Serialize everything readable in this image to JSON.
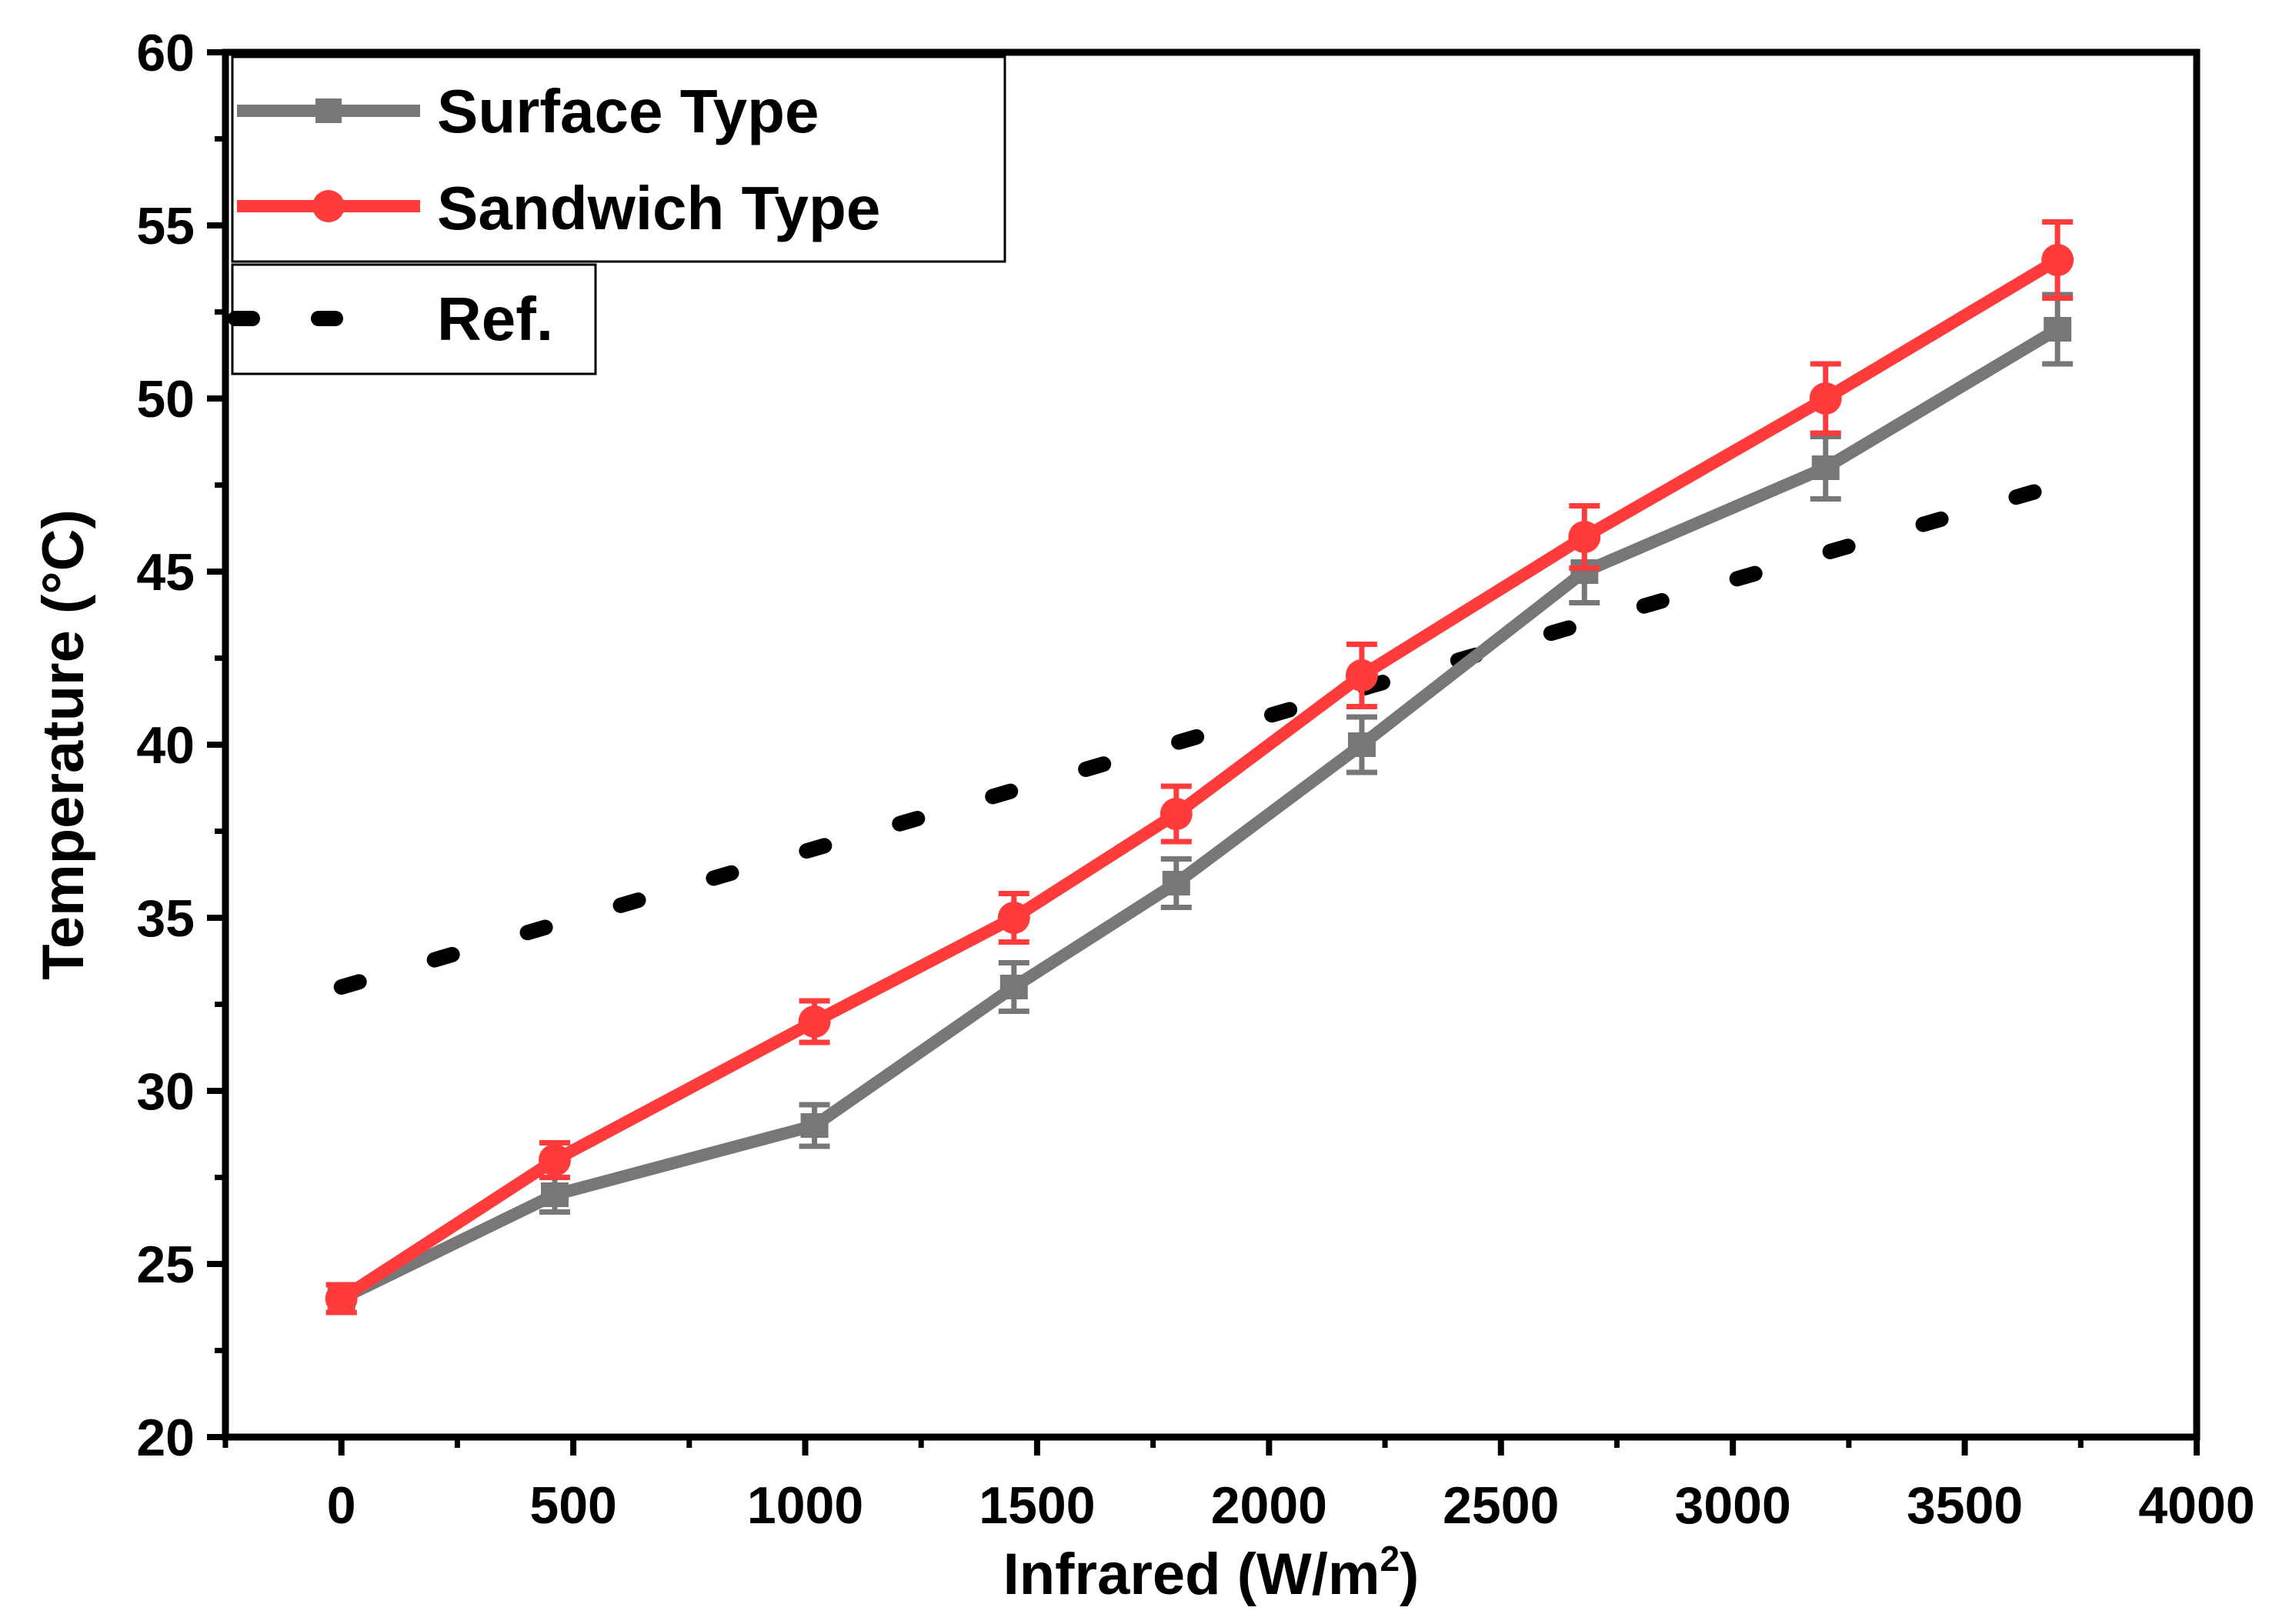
{
  "chart_data": {
    "type": "line",
    "title": "",
    "xlabel": "Infrared (W/m",
    "xlabel_sup": "2",
    "xlabel_suffix": ")",
    "ylabel": "Temperature (°C)",
    "xlim": [
      -250,
      4000
    ],
    "ylim": [
      20,
      60
    ],
    "xticks": [
      0,
      500,
      1000,
      1500,
      2000,
      2500,
      3000,
      3500,
      4000
    ],
    "yticks": [
      20,
      25,
      30,
      35,
      40,
      45,
      50,
      55,
      60
    ],
    "legend_position": "top-left",
    "series": [
      {
        "name": "Surface Type",
        "color": "#777777",
        "marker": "square",
        "x": [
          0,
          460,
          1020,
          1450,
          1800,
          2200,
          2680,
          3200,
          3700
        ],
        "y": [
          24,
          27,
          29,
          33,
          36,
          40,
          45,
          48,
          52
        ],
        "err": [
          0.4,
          0.5,
          0.6,
          0.7,
          0.7,
          0.8,
          0.9,
          0.9,
          1.0
        ]
      },
      {
        "name": "Sandwich Type",
        "color": "#ff3b3b",
        "marker": "circle",
        "x": [
          0,
          460,
          1020,
          1450,
          1800,
          2200,
          2680,
          3200,
          3700
        ],
        "y": [
          24,
          28,
          32,
          35,
          38,
          42,
          46,
          50,
          54
        ],
        "err": [
          0.4,
          0.5,
          0.6,
          0.7,
          0.8,
          0.9,
          0.9,
          1.0,
          1.1
        ]
      },
      {
        "name": "Ref.",
        "color": "#000000",
        "style": "dotted",
        "x": [
          0,
          3700
        ],
        "y": [
          33,
          47.5
        ]
      }
    ]
  }
}
